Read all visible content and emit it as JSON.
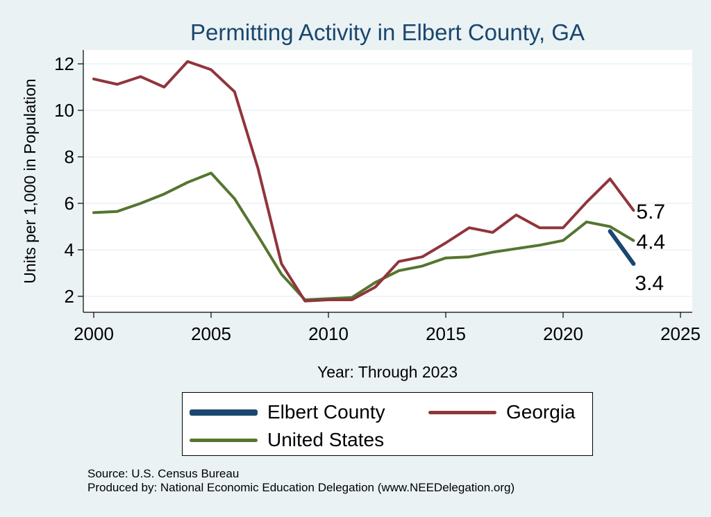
{
  "chart_data": {
    "type": "line",
    "title": "Permitting Activity in Elbert County, GA",
    "xlabel": "Year: Through 2023",
    "ylabel": "Units per 1,000 in Population",
    "xlim": [
      2000,
      2025
    ],
    "ylim": [
      1.5,
      12.5
    ],
    "x_ticks": [
      2000,
      2005,
      2010,
      2015,
      2020,
      2025
    ],
    "y_ticks": [
      2,
      4,
      6,
      8,
      10,
      12
    ],
    "grid": true,
    "legend_position": "bottom",
    "series": [
      {
        "name": "Elbert County",
        "color": "#1a476f",
        "x": [
          2022,
          2023
        ],
        "values": [
          4.8,
          3.4
        ],
        "end_label": "3.4"
      },
      {
        "name": "Georgia",
        "color": "#90353b",
        "x": [
          2000,
          2001,
          2002,
          2003,
          2004,
          2005,
          2006,
          2007,
          2008,
          2009,
          2010,
          2011,
          2012,
          2013,
          2014,
          2015,
          2016,
          2017,
          2018,
          2019,
          2020,
          2021,
          2022,
          2023
        ],
        "values": [
          11.35,
          11.12,
          11.45,
          11.0,
          12.1,
          11.75,
          10.8,
          7.5,
          3.4,
          1.8,
          1.85,
          1.85,
          2.4,
          3.5,
          3.7,
          4.3,
          4.95,
          4.75,
          5.5,
          4.95,
          4.95,
          6.05,
          7.05,
          5.7
        ],
        "end_label": "5.7"
      },
      {
        "name": "United States",
        "color": "#55752f",
        "x": [
          2000,
          2001,
          2002,
          2003,
          2004,
          2005,
          2006,
          2007,
          2008,
          2009,
          2010,
          2011,
          2012,
          2013,
          2014,
          2015,
          2016,
          2017,
          2018,
          2019,
          2020,
          2021,
          2022,
          2023
        ],
        "values": [
          5.6,
          5.65,
          6.0,
          6.4,
          6.9,
          7.3,
          6.2,
          4.6,
          2.95,
          1.85,
          1.9,
          1.95,
          2.6,
          3.1,
          3.3,
          3.65,
          3.7,
          3.9,
          4.05,
          4.2,
          4.4,
          5.2,
          5.0,
          4.4
        ],
        "end_label": "4.4"
      }
    ],
    "legend_order": [
      "Elbert County",
      "Georgia",
      "United States"
    ]
  },
  "source": {
    "line1": "Source: U.S. Census Bureau",
    "line2": "Produced by: National Economic Education Delegation (www.NEEDelegation.org)"
  },
  "colors": {
    "background": "#eaf2f3",
    "plot_background": "#ffffff",
    "title": "#1a476f",
    "grid": "#eaf2f3"
  }
}
